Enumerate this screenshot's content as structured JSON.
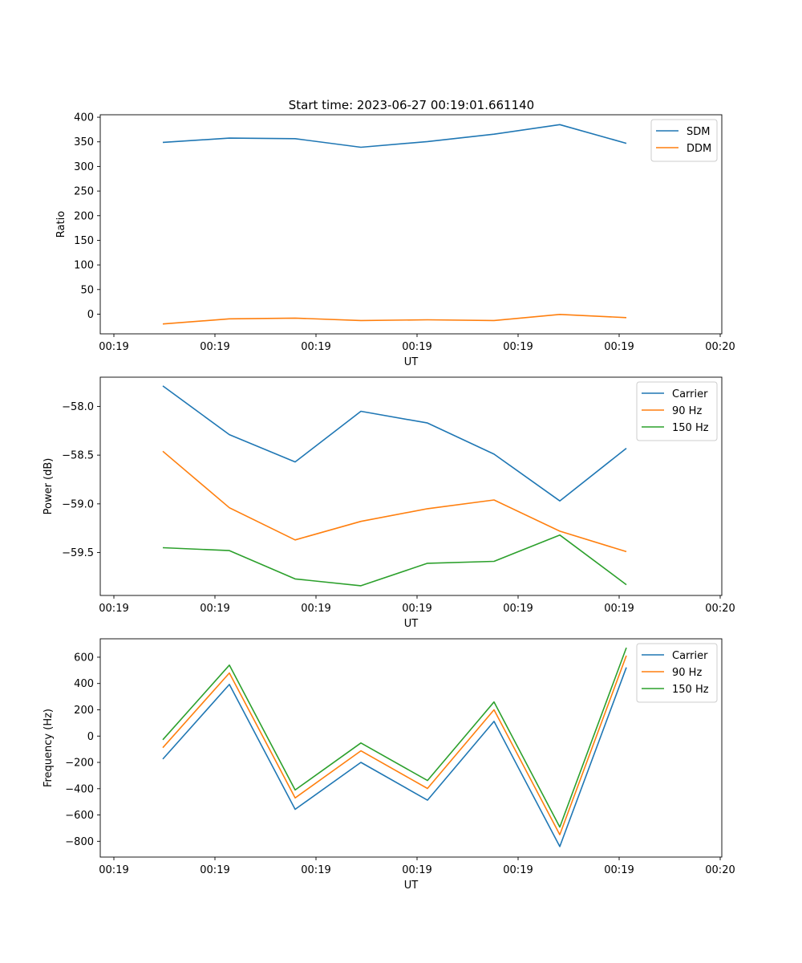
{
  "figure": {
    "title": "Start time: 2023-06-27 00:19:01.661140"
  },
  "chart_data": [
    {
      "type": "line",
      "title": "Start time: 2023-06-27 00:19:01.661140",
      "xlabel": "UT",
      "ylabel": "Ratio",
      "x_tick_labels": [
        "00:19",
        "00:19",
        "00:19",
        "00:19",
        "00:19",
        "00:19",
        "00:20"
      ],
      "y_ticks": [
        0,
        50,
        100,
        150,
        200,
        250,
        300,
        350,
        400
      ],
      "ylim": [
        -40,
        405
      ],
      "legend_position": "upper right",
      "series": [
        {
          "name": "SDM",
          "color": "#1f77b4",
          "values": [
            349,
            357.5,
            356.5,
            339,
            350.5,
            365.5,
            385,
            347
          ]
        },
        {
          "name": "DDM",
          "color": "#ff7f0e",
          "values": [
            -20,
            -9.5,
            -8,
            -13,
            -11.5,
            -13,
            -0.5,
            -7
          ]
        }
      ]
    },
    {
      "type": "line",
      "title": "",
      "xlabel": "UT",
      "ylabel": "Power (dB)",
      "x_tick_labels": [
        "00:19",
        "00:19",
        "00:19",
        "00:19",
        "00:19",
        "00:19",
        "00:20"
      ],
      "y_ticks": [
        -58.0,
        -58.5,
        -59.0,
        -59.5
      ],
      "y_tick_labels": [
        "−58.0",
        "−58.5",
        "−59.0",
        "−59.5"
      ],
      "ylim": [
        -59.94,
        -57.7
      ],
      "legend_position": "upper right",
      "series": [
        {
          "name": "Carrier",
          "color": "#1f77b4",
          "values": [
            -57.79,
            -58.29,
            -58.57,
            -58.05,
            -58.17,
            -58.49,
            -58.97,
            -58.43
          ]
        },
        {
          "name": "90 Hz",
          "color": "#ff7f0e",
          "values": [
            -58.46,
            -59.04,
            -59.37,
            -59.18,
            -59.05,
            -58.96,
            -59.28,
            -59.49
          ]
        },
        {
          "name": "150 Hz",
          "color": "#2ca02c",
          "values": [
            -59.45,
            -59.48,
            -59.77,
            -59.84,
            -59.61,
            -59.59,
            -59.32,
            -59.83
          ]
        }
      ]
    },
    {
      "type": "line",
      "title": "",
      "xlabel": "UT",
      "ylabel": "Frequency (Hz)",
      "x_tick_labels": [
        "00:19",
        "00:19",
        "00:19",
        "00:19",
        "00:19",
        "00:19",
        "00:20"
      ],
      "y_ticks": [
        -800,
        -600,
        -400,
        -200,
        0,
        200,
        400,
        600
      ],
      "y_tick_labels": [
        "−800",
        "−600",
        "−400",
        "−200",
        "0",
        "200",
        "400",
        "600"
      ],
      "ylim": [
        -920,
        740
      ],
      "legend_position": "upper right",
      "series": [
        {
          "name": "Carrier",
          "color": "#1f77b4",
          "values": [
            -175,
            393,
            -557,
            -200,
            -487,
            112,
            -840,
            522
          ]
        },
        {
          "name": "90 Hz",
          "color": "#ff7f0e",
          "values": [
            -88,
            480,
            -470,
            -112,
            -398,
            200,
            -750,
            612
          ]
        },
        {
          "name": "150 Hz",
          "color": "#2ca02c",
          "values": [
            -28,
            540,
            -410,
            -52,
            -338,
            260,
            -692,
            672
          ]
        }
      ]
    }
  ]
}
